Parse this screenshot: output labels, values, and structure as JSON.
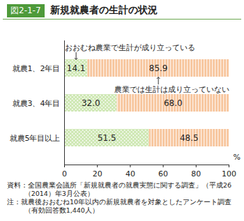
{
  "chart_data": {
    "type": "bar",
    "figure_label": "図2-1-7",
    "title": "新規就農者の生計の状況",
    "orientation": "horizontal",
    "stacked": true,
    "data_labels": true,
    "categories": [
      "就農1、2年目",
      "就農3、4年目",
      "就農5年目以上"
    ],
    "series": [
      {
        "name": "おおむね農業で生計が成り立っている",
        "color": "#cfe8b4",
        "values": [
          14.1,
          32.0,
          51.5
        ],
        "value_labels": [
          "14.1",
          "32.0",
          "51.5"
        ]
      },
      {
        "name": "農業では生計は成り立っていない",
        "color": "#f7c59c",
        "values": [
          85.9,
          68.0,
          48.5
        ],
        "value_labels": [
          "85.9",
          "68.0",
          "48.5"
        ]
      }
    ],
    "xlabel": "%",
    "xlim": [
      0,
      100
    ],
    "xticks": [
      0,
      20,
      40,
      60,
      80,
      100
    ],
    "source": "資料：全国農業会議所「新規就農者の就農実態に関する調査」（平成26（2014）年3月公表）",
    "note": "注：就農後おおむね10年以内の新規就農者を対象としたアンケート調査（有効回答数1,440人）"
  }
}
